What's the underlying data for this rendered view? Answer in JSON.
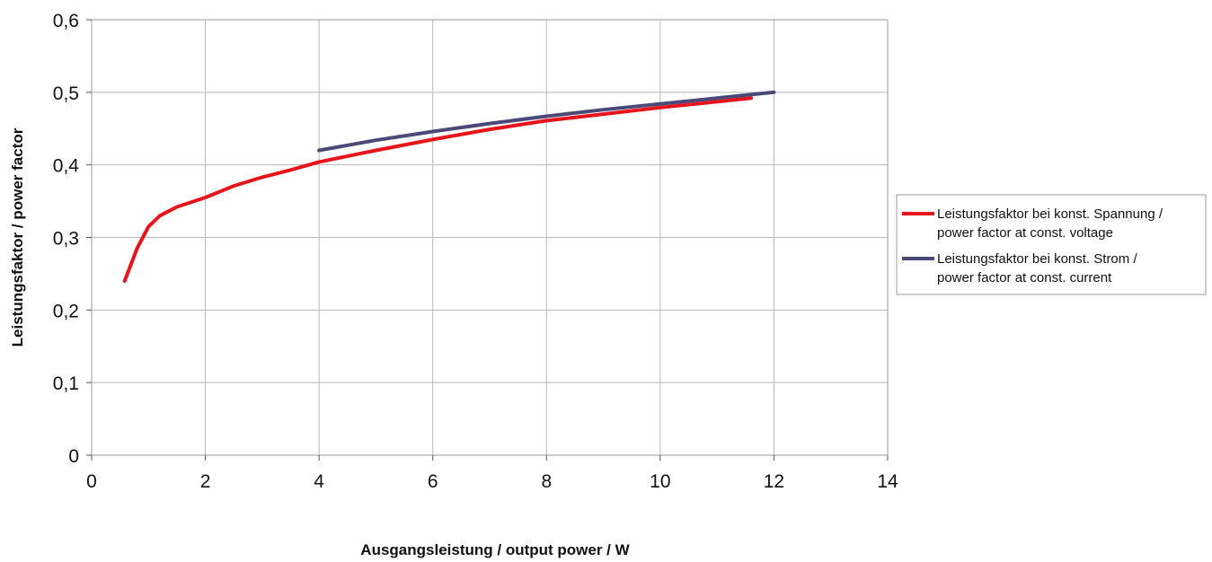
{
  "chart_data": {
    "type": "line",
    "title": "",
    "xlabel": "Ausgangsleistung / output power / W",
    "ylabel": "Leistungsfaktor / power factor",
    "xlim": [
      0,
      14
    ],
    "ylim": [
      0,
      0.6
    ],
    "x_ticks": [
      0,
      2,
      4,
      6,
      8,
      10,
      12,
      14
    ],
    "x_tick_labels": [
      "0",
      "2",
      "4",
      "6",
      "8",
      "10",
      "12",
      "14"
    ],
    "y_ticks": [
      0,
      0.1,
      0.2,
      0.3,
      0.4,
      0.5,
      0.6
    ],
    "y_tick_labels": [
      "0",
      "0,1",
      "0,2",
      "0,3",
      "0,4",
      "0,5",
      "0,6"
    ],
    "grid": true,
    "legend_position": "right",
    "series": [
      {
        "name_line1": "Leistungsfaktor bei konst. Spannung /",
        "name_line2": "power factor at const. voltage",
        "color": "#e8141c",
        "x": [
          0.58,
          0.8,
          1.0,
          1.2,
          1.5,
          2.0,
          2.5,
          3.0,
          3.5,
          4.0,
          5.0,
          6.0,
          7.0,
          8.0,
          9.0,
          10.0,
          11.0,
          11.6
        ],
        "y": [
          0.24,
          0.285,
          0.315,
          0.33,
          0.342,
          0.355,
          0.371,
          0.383,
          0.393,
          0.404,
          0.42,
          0.435,
          0.449,
          0.461,
          0.47,
          0.479,
          0.487,
          0.492
        ]
      },
      {
        "name_line1": "Leistungsfaktor bei konst. Strom /",
        "name_line2": "power factor at const. current",
        "color": "#4b4977",
        "x": [
          4.0,
          5.0,
          6.0,
          7.0,
          8.0,
          9.0,
          10.0,
          11.0,
          12.0
        ],
        "y": [
          0.42,
          0.434,
          0.446,
          0.457,
          0.467,
          0.476,
          0.484,
          0.492,
          0.5
        ]
      }
    ]
  }
}
